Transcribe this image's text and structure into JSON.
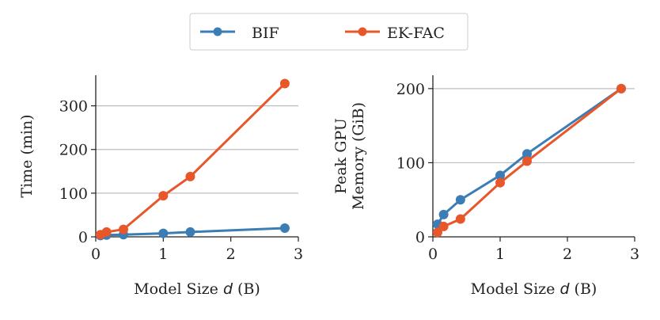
{
  "legend": {
    "placement": "top-center",
    "entries": [
      "BIF",
      "EK-FAC"
    ]
  },
  "colors": {
    "BIF": "#3b7db4",
    "EK-FAC": "#e8572a"
  },
  "chart_data": [
    {
      "type": "line",
      "xlabel": "Model Size d (B)",
      "ylabel": "Time (min)",
      "xlim": [
        0,
        3
      ],
      "ylim": [
        0,
        370
      ],
      "xticks": [
        0,
        1,
        2,
        3
      ],
      "yticks": [
        0,
        100,
        200,
        300
      ],
      "grid": "horizontal",
      "x": [
        0.07,
        0.16,
        0.41,
        1.0,
        1.4,
        2.8
      ],
      "series": [
        {
          "name": "BIF",
          "values": [
            3,
            4,
            5,
            8,
            11,
            20
          ]
        },
        {
          "name": "EK-FAC",
          "values": [
            5,
            11,
            17,
            94,
            138,
            351
          ]
        }
      ]
    },
    {
      "type": "line",
      "xlabel": "Model Size d (B)",
      "ylabel": "Peak GPU\nMemory (GiB)",
      "xlim": [
        0,
        3
      ],
      "ylim": [
        0,
        218
      ],
      "xticks": [
        0,
        1,
        2,
        3
      ],
      "yticks": [
        0,
        100,
        200
      ],
      "grid": "horizontal",
      "x": [
        0.07,
        0.16,
        0.41,
        1.0,
        1.4,
        2.8
      ],
      "series": [
        {
          "name": "BIF",
          "values": [
            17,
            30,
            50,
            83,
            112,
            200
          ]
        },
        {
          "name": "EK-FAC",
          "values": [
            6,
            14,
            24,
            73,
            102,
            200
          ]
        }
      ]
    }
  ]
}
